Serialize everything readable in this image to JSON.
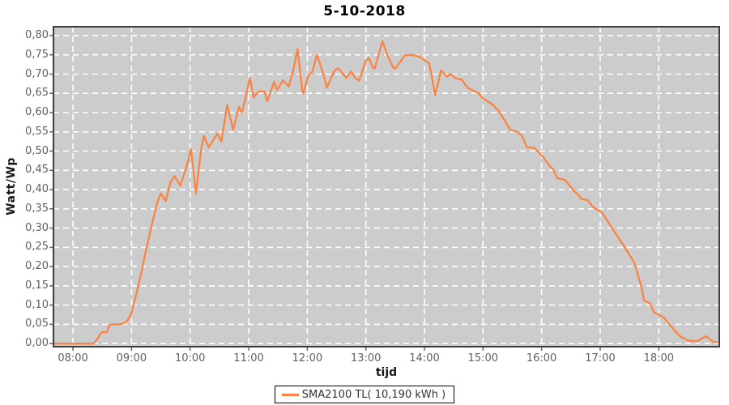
{
  "title": "5-10-2018",
  "colors": {
    "background": "#FFFFFF",
    "plot_bg": "#CCCCCC",
    "grid": "#FFFFFF",
    "line": "#FA8445",
    "tick_text": "#616161",
    "tick_mark": "#666666",
    "plot_border": "#3D3D3D",
    "legend_border": "#000000",
    "legend_bg": "#FFFFFF"
  },
  "chart_data": {
    "type": "line",
    "title": "5-10-2018",
    "xlabel": "tijd",
    "ylabel": "Watt/Wp",
    "legend_position": "bottom-center",
    "grid": "white dashed gridlines on gray plot background",
    "x_domain_minutes": [
      460,
      1142
    ],
    "y_domain": [
      -0.008,
      0.823
    ],
    "x_ticks": [
      {
        "label": "08:00",
        "minutes": 480
      },
      {
        "label": "09:00",
        "minutes": 540
      },
      {
        "label": "10:00",
        "minutes": 600
      },
      {
        "label": "11:00",
        "minutes": 660
      },
      {
        "label": "12:00",
        "minutes": 720
      },
      {
        "label": "13:00",
        "minutes": 780
      },
      {
        "label": "14:00",
        "minutes": 840
      },
      {
        "label": "15:00",
        "minutes": 900
      },
      {
        "label": "16:00",
        "minutes": 960
      },
      {
        "label": "17:00",
        "minutes": 1020
      },
      {
        "label": "18:00",
        "minutes": 1080
      }
    ],
    "y_ticks": [
      {
        "label": "0,00",
        "value": 0.0
      },
      {
        "label": "0,05",
        "value": 0.05
      },
      {
        "label": "0,10",
        "value": 0.1
      },
      {
        "label": "0,15",
        "value": 0.15
      },
      {
        "label": "0,20",
        "value": 0.2
      },
      {
        "label": "0,25",
        "value": 0.25
      },
      {
        "label": "0,30",
        "value": 0.3
      },
      {
        "label": "0,35",
        "value": 0.35
      },
      {
        "label": "0,40",
        "value": 0.4
      },
      {
        "label": "0,45",
        "value": 0.45
      },
      {
        "label": "0,50",
        "value": 0.5
      },
      {
        "label": "0,55",
        "value": 0.55
      },
      {
        "label": "0,60",
        "value": 0.6
      },
      {
        "label": "0,65",
        "value": 0.65
      },
      {
        "label": "0,70",
        "value": 0.7
      },
      {
        "label": "0,75",
        "value": 0.75
      },
      {
        "label": "0,80",
        "value": 0.8
      }
    ],
    "legend": [
      {
        "label": "SMA2100 TL( 10,190 kWh )",
        "color": "#FA8445"
      }
    ],
    "series": [
      {
        "name": "SMA2100 TL( 10,190 kWh )",
        "color": "#FA8445",
        "points": [
          [
            "07:40",
            0.0
          ],
          [
            "07:50",
            0.0
          ],
          [
            "08:00",
            0.0
          ],
          [
            "08:10",
            0.0
          ],
          [
            "08:21",
            0.0
          ],
          [
            "08:25",
            0.012
          ],
          [
            "08:28",
            0.025
          ],
          [
            "08:30",
            0.03
          ],
          [
            "08:35",
            0.03
          ],
          [
            "08:37",
            0.047
          ],
          [
            "08:40",
            0.05
          ],
          [
            "08:48",
            0.05
          ],
          [
            "08:52",
            0.053
          ],
          [
            "08:56",
            0.06
          ],
          [
            "09:00",
            0.08
          ],
          [
            "09:05",
            0.13
          ],
          [
            "09:10",
            0.185
          ],
          [
            "09:15",
            0.245
          ],
          [
            "09:20",
            0.3
          ],
          [
            "09:26",
            0.365
          ],
          [
            "09:30",
            0.39
          ],
          [
            "09:35",
            0.37
          ],
          [
            "09:40",
            0.42
          ],
          [
            "09:44",
            0.435
          ],
          [
            "09:50",
            0.41
          ],
          [
            "09:57",
            0.465
          ],
          [
            "10:01",
            0.505
          ],
          [
            "10:06",
            0.39
          ],
          [
            "10:11",
            0.5
          ],
          [
            "10:14",
            0.54
          ],
          [
            "10:19",
            0.51
          ],
          [
            "10:24",
            0.53
          ],
          [
            "10:28",
            0.545
          ],
          [
            "10:32",
            0.525
          ],
          [
            "10:38",
            0.62
          ],
          [
            "10:44",
            0.555
          ],
          [
            "10:50",
            0.615
          ],
          [
            "10:53",
            0.6
          ],
          [
            "10:57",
            0.64
          ],
          [
            "11:01",
            0.69
          ],
          [
            "11:05",
            0.64
          ],
          [
            "11:10",
            0.655
          ],
          [
            "11:16",
            0.655
          ],
          [
            "11:19",
            0.63
          ],
          [
            "11:26",
            0.68
          ],
          [
            "11:29",
            0.658
          ],
          [
            "11:35",
            0.683
          ],
          [
            "11:41",
            0.668
          ],
          [
            "11:46",
            0.714
          ],
          [
            "11:50",
            0.765
          ],
          [
            "11:55",
            0.655
          ],
          [
            "11:56",
            0.65
          ],
          [
            "12:01",
            0.697
          ],
          [
            "12:05",
            0.705
          ],
          [
            "12:10",
            0.75
          ],
          [
            "12:16",
            0.703
          ],
          [
            "12:20",
            0.665
          ],
          [
            "12:28",
            0.71
          ],
          [
            "12:32",
            0.715
          ],
          [
            "12:40",
            0.69
          ],
          [
            "12:45",
            0.707
          ],
          [
            "12:49",
            0.69
          ],
          [
            "12:53",
            0.683
          ],
          [
            "13:00",
            0.735
          ],
          [
            "13:03",
            0.742
          ],
          [
            "13:07",
            0.718
          ],
          [
            "13:09",
            0.714
          ],
          [
            "13:17",
            0.785
          ],
          [
            "13:22",
            0.75
          ],
          [
            "13:28",
            0.717
          ],
          [
            "13:30",
            0.714
          ],
          [
            "13:40",
            0.749
          ],
          [
            "13:48",
            0.75
          ],
          [
            "13:55",
            0.745
          ],
          [
            "13:59",
            0.738
          ],
          [
            "14:05",
            0.728
          ],
          [
            "14:11",
            0.645
          ],
          [
            "14:17",
            0.71
          ],
          [
            "14:23",
            0.693
          ],
          [
            "14:27",
            0.7
          ],
          [
            "14:32",
            0.689
          ],
          [
            "14:38",
            0.686
          ],
          [
            "14:44",
            0.665
          ],
          [
            "14:49",
            0.658
          ],
          [
            "14:55",
            0.651
          ],
          [
            "15:00",
            0.637
          ],
          [
            "15:09",
            0.622
          ],
          [
            "15:16",
            0.605
          ],
          [
            "15:22",
            0.58
          ],
          [
            "15:28",
            0.555
          ],
          [
            "15:35",
            0.55
          ],
          [
            "15:40",
            0.539
          ],
          [
            "15:45",
            0.51
          ],
          [
            "15:53",
            0.508
          ],
          [
            "15:57",
            0.497
          ],
          [
            "16:03",
            0.48
          ],
          [
            "16:08",
            0.462
          ],
          [
            "16:12",
            0.452
          ],
          [
            "16:16",
            0.43
          ],
          [
            "16:24",
            0.425
          ],
          [
            "16:32",
            0.4
          ],
          [
            "16:39",
            0.382
          ],
          [
            "16:41",
            0.375
          ],
          [
            "16:47",
            0.373
          ],
          [
            "16:53",
            0.354
          ],
          [
            "17:02",
            0.34
          ],
          [
            "17:13",
            0.297
          ],
          [
            "17:24",
            0.255
          ],
          [
            "17:35",
            0.21
          ],
          [
            "17:42",
            0.15
          ],
          [
            "17:45",
            0.112
          ],
          [
            "17:51",
            0.105
          ],
          [
            "17:55",
            0.082
          ],
          [
            "18:00",
            0.075
          ],
          [
            "18:05",
            0.068
          ],
          [
            "18:11",
            0.05
          ],
          [
            "18:16",
            0.035
          ],
          [
            "18:22",
            0.019
          ],
          [
            "18:30",
            0.008
          ],
          [
            "18:38",
            0.006
          ],
          [
            "18:41",
            0.008
          ],
          [
            "18:45",
            0.015
          ],
          [
            "18:49",
            0.019
          ],
          [
            "18:53",
            0.01
          ],
          [
            "18:56",
            0.005
          ],
          [
            "19:00",
            0.004
          ]
        ]
      }
    ]
  }
}
